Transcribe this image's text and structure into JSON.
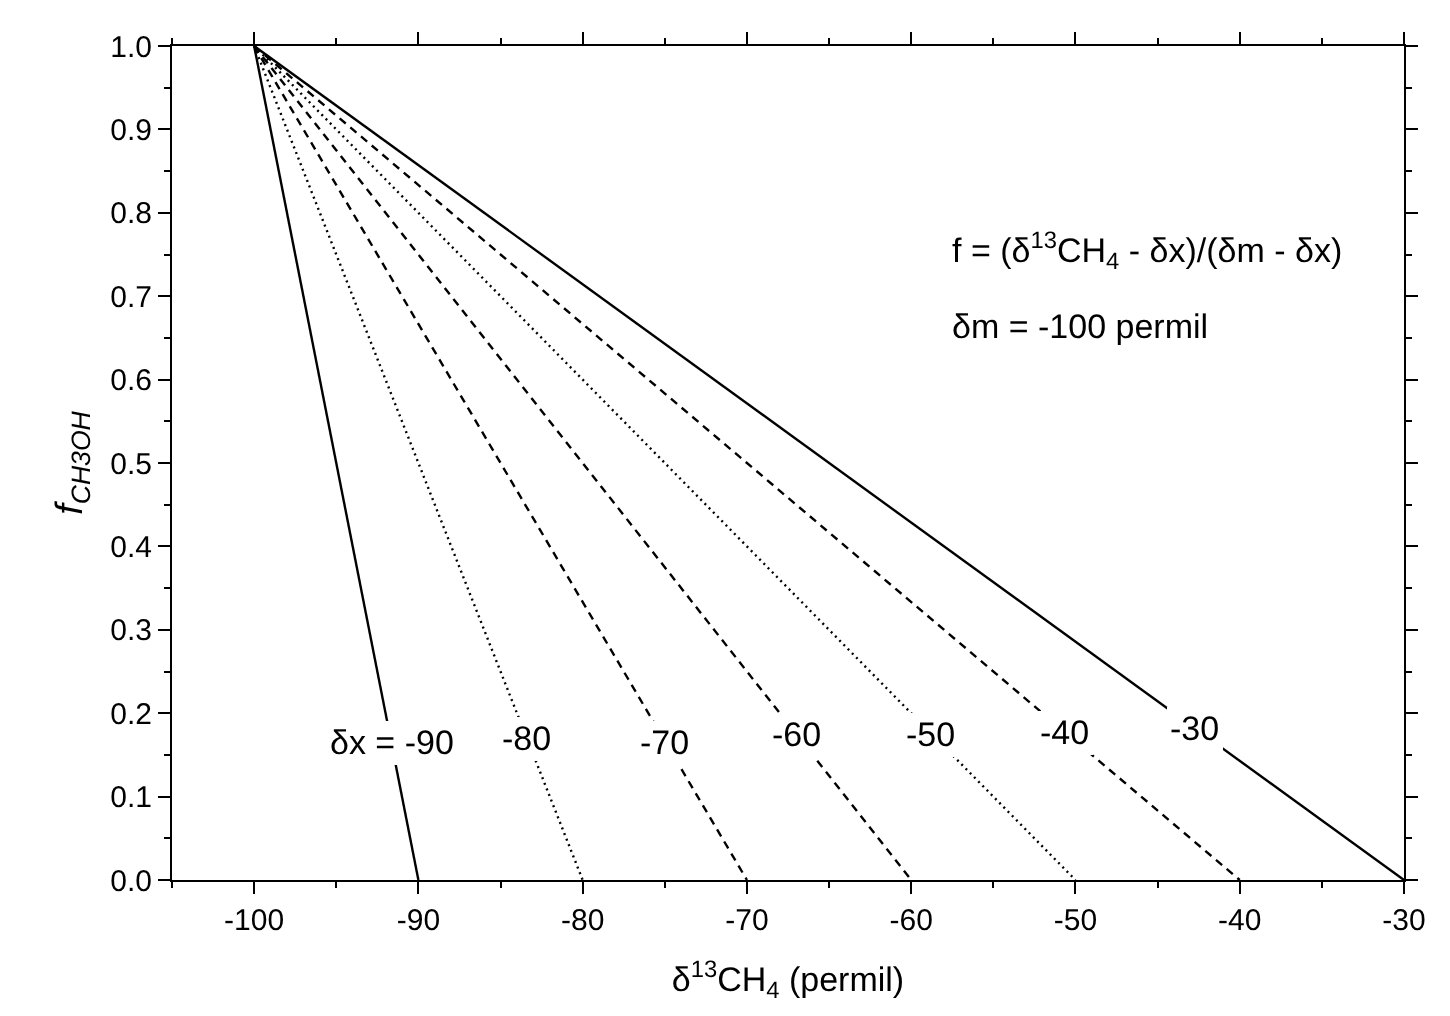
{
  "chart_data": {
    "type": "line",
    "xlabel": "δ$^{13}$CH$_{4}$ (permil)",
    "ylabel": "f$_{CH3OH}$",
    "xlim": [
      -105,
      -30
    ],
    "ylim": [
      0,
      1
    ],
    "xticks": [
      -100,
      -90,
      -80,
      -70,
      -60,
      -50,
      -40,
      -30
    ],
    "yticks": [
      {
        "value": 0,
        "label": "0.0"
      },
      0.1,
      0.2,
      0.3,
      0.4,
      0.5,
      0.6,
      0.7,
      0.8,
      0.9,
      {
        "value": 1,
        "label": "1.0"
      }
    ],
    "marker": "none",
    "series": [
      {
        "color": "#000000",
        "x": [
          -100,
          -90
        ],
        "values": [
          1,
          0
        ],
        "line_style": "solid"
      },
      {
        "color": "#000000",
        "x": [
          -100,
          -80
        ],
        "values": [
          1,
          0
        ],
        "line_style": "dotted"
      },
      {
        "color": "#000000",
        "x": [
          -100,
          -70
        ],
        "values": [
          1,
          0
        ],
        "line_style": "dashed"
      },
      {
        "color": "#000000",
        "x": [
          -100,
          -60
        ],
        "values": [
          1,
          0
        ],
        "line_style": "dashed"
      },
      {
        "color": "#000000",
        "x": [
          -100,
          -50
        ],
        "values": [
          1,
          0
        ],
        "line_style": "dotted"
      },
      {
        "color": "#000000",
        "x": [
          -100,
          -40
        ],
        "values": [
          1,
          0
        ],
        "line_style": "dashed"
      },
      {
        "color": "#000000",
        "x": [
          -100,
          -30
        ],
        "values": [
          1,
          0
        ],
        "line_style": "solid"
      }
    ],
    "annotations": [
      {
        "text": "δx = -90",
        "x": -91.65,
        "y": 0.165
      },
      {
        "text": "-80",
        "x": -83.4,
        "y": 0.17
      },
      {
        "text": "-70",
        "x": -74.95,
        "y": 0.165
      },
      {
        "text": "-60",
        "x": -67,
        "y": 0.175
      },
      {
        "text": "-50",
        "x": -58.75,
        "y": 0.175
      },
      {
        "text": "-40",
        "x": -50.6,
        "y": 0.177
      },
      {
        "text": "-30",
        "x": -42.7,
        "y": 0.182
      },
      "f = (δ$^{13}$CH$_{4}$ - δx)/(δm - δx)",
      "δm = -100 permil"
    ]
  }
}
